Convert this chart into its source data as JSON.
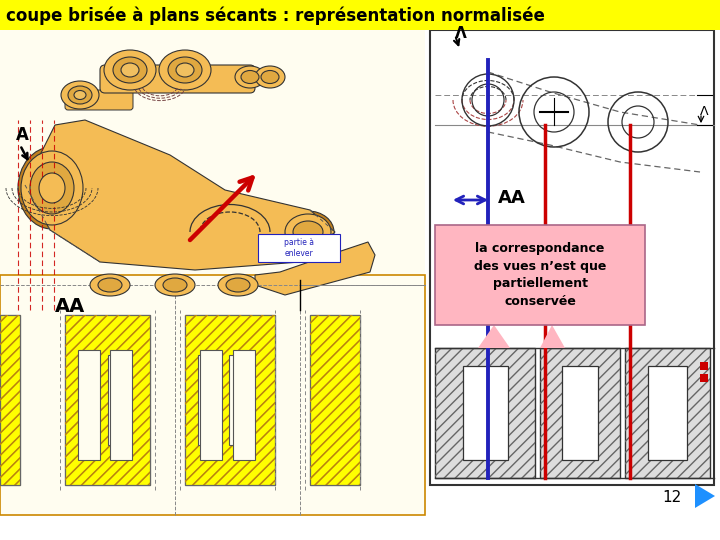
{
  "title": "coupe brisée à plans sécants : représentation normalisée",
  "title_bg": "#FFFF00",
  "title_color": "#000000",
  "title_fontsize": 12,
  "bg_color": "#FFFFFF",
  "page_number": "12",
  "annotation_text": "la correspondance\ndes vues n’est que\npartiellement\nconservée",
  "annotation_bg": "#FFB6C1",
  "red_color": "#CC0000",
  "blue_color": "#2222BB",
  "tan_light": "#F0C060",
  "tan_mid": "#E0A840",
  "tan_dark": "#C08020",
  "tan_fill": "#F4BC55",
  "pink_color": "#FFB6C1",
  "nav_color": "#1E90FF",
  "yellow_fill": "#FFFF00",
  "left_bg": "#FFFDF0",
  "gray_hatch": "#888888"
}
